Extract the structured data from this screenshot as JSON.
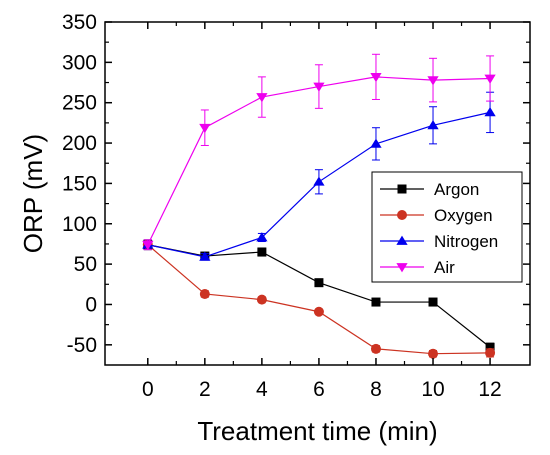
{
  "chart_data": {
    "type": "line",
    "xlabel": "Treatment time (min)",
    "ylabel": "ORP (mV)",
    "x": [
      0,
      2,
      4,
      6,
      8,
      10,
      12
    ],
    "xlim": [
      -1.5,
      13.4
    ],
    "ylim": [
      -75,
      350
    ],
    "xticks": [
      0,
      2,
      4,
      6,
      8,
      10,
      12
    ],
    "yticks": [
      -50,
      0,
      50,
      100,
      150,
      200,
      250,
      300,
      350
    ],
    "x_tick_labels": [
      "0",
      "2",
      "4",
      "6",
      "8",
      "10",
      "12"
    ],
    "y_tick_labels": [
      "-50",
      "0",
      "50",
      "100",
      "150",
      "200",
      "250",
      "300",
      "350"
    ],
    "grid": false,
    "legend_position": "right",
    "series": [
      {
        "name": "Argon",
        "color": "#000000",
        "marker": "square",
        "values": [
          74,
          60,
          65,
          27,
          3,
          3,
          -53
        ],
        "errors": [
          6,
          4,
          5,
          3,
          3,
          3,
          5
        ]
      },
      {
        "name": "Oxygen",
        "color": "#cc3322",
        "marker": "circle",
        "values": [
          74,
          13,
          6,
          -9,
          -55,
          -61,
          -60
        ],
        "errors": [
          6,
          4,
          3,
          3,
          4,
          4,
          5
        ]
      },
      {
        "name": "Nitrogen",
        "color": "#0000ee",
        "marker": "triangle-up",
        "values": [
          74,
          59,
          83,
          152,
          199,
          222,
          238
        ],
        "errors": [
          6,
          4,
          5,
          15,
          20,
          23,
          25
        ]
      },
      {
        "name": "Air",
        "color": "#ee00ee",
        "marker": "triangle-down",
        "values": [
          74,
          219,
          257,
          270,
          282,
          278,
          280
        ],
        "errors": [
          6,
          22,
          25,
          27,
          28,
          27,
          28
        ]
      }
    ]
  }
}
